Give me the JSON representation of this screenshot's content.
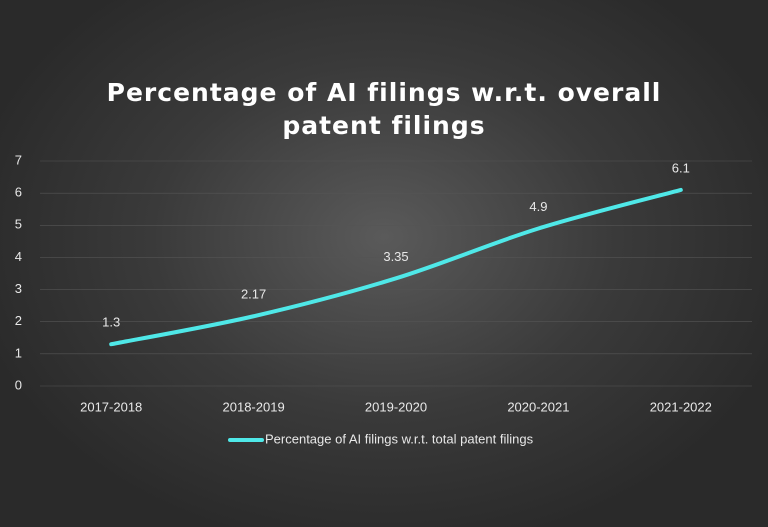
{
  "chart_data": {
    "type": "line",
    "title": "Percentage of AI filings w.r.t. overall patent filings",
    "categories": [
      "2017-2018",
      "2018-2019",
      "2019-2020",
      "2020-2021",
      "2021-2022"
    ],
    "series": [
      {
        "name": "Percentage of AI filings w.r.t. total patent filings",
        "color": "#4fe8e8",
        "values": [
          1.3,
          2.17,
          3.35,
          4.9,
          6.1
        ]
      }
    ],
    "ylim": [
      0,
      7
    ],
    "yticks": [
      0,
      1,
      2,
      3,
      4,
      5,
      6,
      7
    ],
    "grid": true,
    "legend": "bottom"
  }
}
